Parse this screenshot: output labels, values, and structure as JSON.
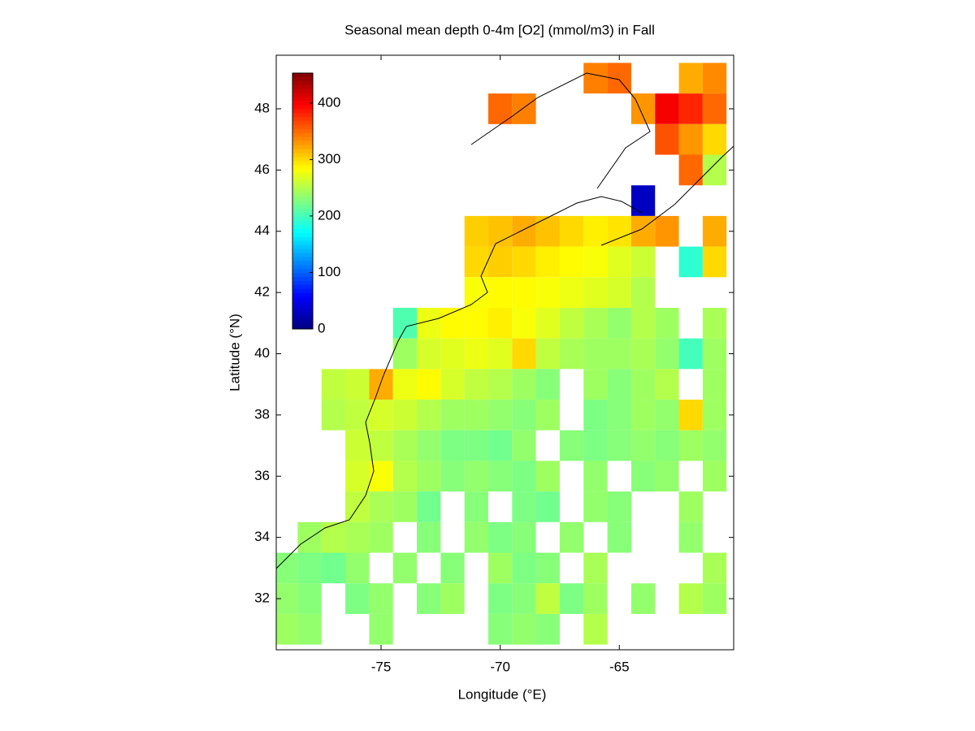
{
  "chart_data": {
    "type": "heatmap",
    "title": "Seasonal mean depth 0-4m [O2] (mmol/m3) in Fall",
    "x_label": "Longitude (°E)",
    "y_label": "Latitude (°N)",
    "xlim": [
      -79.4,
      -60.2
    ],
    "ylim": [
      30.33,
      49.75
    ],
    "xticks": [
      -75,
      -70,
      -65
    ],
    "yticks": [
      32,
      34,
      36,
      38,
      40,
      42,
      44,
      46,
      48
    ],
    "x_edges": [
      -79.5,
      -78.5,
      -77.5,
      -76.5,
      -75.5,
      -74.5,
      -73.5,
      -72.5,
      -71.5,
      -70.5,
      -69.5,
      -68.5,
      -67.5,
      -66.5,
      -65.5,
      -64.5,
      -63.5,
      -62.5,
      -61.5,
      -60.5
    ],
    "y_edges": [
      49.5,
      48.5,
      47.5,
      46.5,
      45.5,
      44.5,
      43.5,
      42.5,
      41.5,
      40.5,
      39.5,
      38.5,
      37.5,
      36.5,
      35.5,
      34.5,
      33.5,
      32.5,
      31.5,
      30.5
    ],
    "colormap": "jet",
    "clim": [
      0,
      453
    ],
    "colorbar_ticks": [
      0,
      100,
      200,
      300,
      400
    ],
    "values": [
      [
        null,
        null,
        null,
        null,
        null,
        null,
        null,
        null,
        null,
        null,
        null,
        null,
        null,
        340,
        350,
        null,
        null,
        320,
        335
      ],
      [
        null,
        null,
        null,
        null,
        null,
        null,
        null,
        null,
        null,
        350,
        340,
        null,
        null,
        null,
        null,
        330,
        400,
        380,
        350
      ],
      [
        null,
        null,
        null,
        null,
        null,
        null,
        null,
        null,
        null,
        null,
        null,
        null,
        null,
        null,
        null,
        null,
        360,
        330,
        300
      ],
      [
        null,
        null,
        null,
        null,
        null,
        null,
        null,
        null,
        null,
        null,
        null,
        null,
        null,
        null,
        null,
        null,
        null,
        350,
        250
      ],
      [
        null,
        null,
        null,
        null,
        null,
        null,
        null,
        null,
        null,
        null,
        null,
        null,
        null,
        null,
        null,
        30,
        null,
        null,
        null
      ],
      [
        null,
        null,
        null,
        null,
        null,
        null,
        null,
        null,
        305,
        310,
        320,
        310,
        300,
        290,
        295,
        320,
        330,
        null,
        320
      ],
      [
        null,
        null,
        null,
        null,
        null,
        null,
        null,
        null,
        300,
        305,
        300,
        290,
        285,
        280,
        270,
        260,
        null,
        190,
        300
      ],
      [
        null,
        null,
        null,
        null,
        null,
        null,
        null,
        null,
        280,
        285,
        285,
        280,
        275,
        270,
        265,
        250,
        null,
        null,
        null
      ],
      [
        null,
        null,
        null,
        null,
        null,
        205,
        275,
        285,
        285,
        290,
        280,
        270,
        255,
        245,
        235,
        250,
        240,
        null,
        245
      ],
      [
        null,
        null,
        null,
        null,
        null,
        240,
        265,
        270,
        275,
        270,
        300,
        255,
        245,
        240,
        240,
        245,
        235,
        200,
        240
      ],
      [
        null,
        null,
        255,
        260,
        320,
        275,
        285,
        265,
        255,
        250,
        240,
        230,
        null,
        240,
        230,
        240,
        250,
        null,
        240
      ],
      [
        null,
        null,
        250,
        255,
        265,
        260,
        250,
        240,
        240,
        235,
        230,
        240,
        null,
        225,
        230,
        240,
        235,
        300,
        240
      ],
      [
        null,
        null,
        null,
        260,
        255,
        245,
        235,
        225,
        225,
        220,
        235,
        null,
        230,
        225,
        230,
        235,
        230,
        240,
        235
      ],
      [
        null,
        null,
        null,
        265,
        280,
        250,
        240,
        230,
        235,
        230,
        225,
        240,
        null,
        235,
        null,
        230,
        235,
        null,
        240
      ],
      [
        null,
        null,
        null,
        255,
        245,
        240,
        220,
        null,
        230,
        null,
        225,
        220,
        null,
        235,
        230,
        null,
        null,
        240,
        null
      ],
      [
        null,
        240,
        250,
        245,
        240,
        null,
        230,
        null,
        235,
        225,
        230,
        null,
        235,
        null,
        230,
        null,
        null,
        235,
        null
      ],
      [
        230,
        225,
        220,
        235,
        null,
        235,
        null,
        230,
        null,
        240,
        225,
        230,
        null,
        245,
        null,
        null,
        null,
        null,
        245
      ],
      [
        235,
        230,
        null,
        225,
        235,
        null,
        230,
        240,
        null,
        225,
        230,
        255,
        225,
        240,
        null,
        235,
        null,
        250,
        240
      ],
      [
        240,
        235,
        null,
        null,
        235,
        null,
        null,
        null,
        null,
        230,
        235,
        230,
        null,
        250,
        null,
        null,
        null,
        null,
        null
      ]
    ]
  }
}
